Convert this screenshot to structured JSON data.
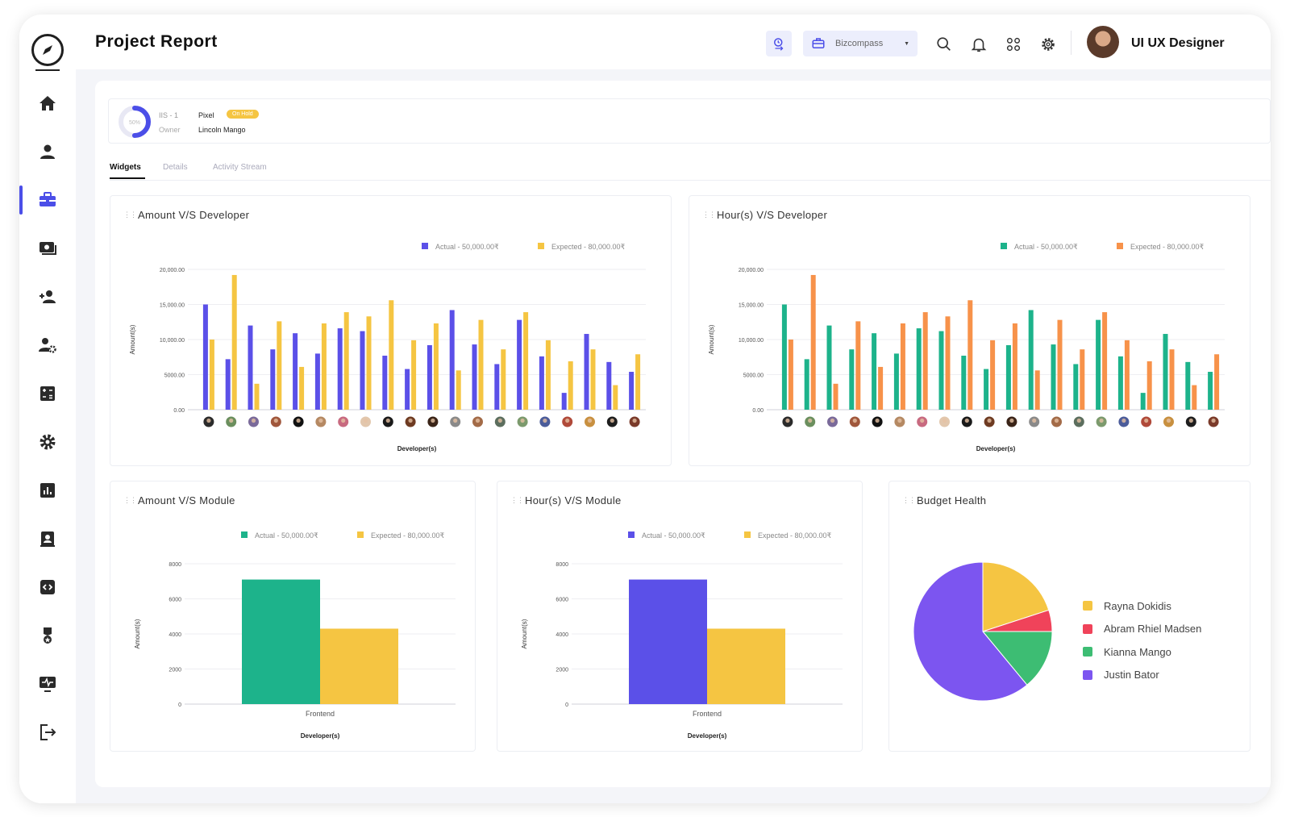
{
  "header": {
    "title": "Project Report",
    "workspace": "Bizcompass",
    "user_name": "UI UX Designer"
  },
  "project": {
    "progress_pct": 50,
    "progress_label": "50%",
    "code": "IIS - 1",
    "name": "Pixel",
    "status": "On Hold",
    "owner_label": "Owner",
    "owner": "Lincoln Mango",
    "status_color": "#f5c542"
  },
  "tabs": [
    {
      "label": "Widgets",
      "active": true
    },
    {
      "label": "Details",
      "active": false
    },
    {
      "label": "Activity Stream",
      "active": false
    }
  ],
  "sidebar_icons": [
    "home-icon",
    "user-icon",
    "briefcase-icon",
    "money-icon",
    "add-user-icon",
    "user-settings-icon",
    "calculator-icon",
    "settings-icon",
    "bar-chart-icon",
    "contacts-icon",
    "code-icon",
    "award-icon",
    "monitor-icon",
    "logout-icon"
  ],
  "chart_data": [
    {
      "type": "bar",
      "title": "Amount V/S Developer",
      "xlabel": "Developer(s)",
      "ylabel": "Amount(s)",
      "ylim": [
        0,
        20000
      ],
      "yticks": [
        "20,000.00",
        "15,000.00",
        "10,000.00",
        "5000.00",
        "0.00"
      ],
      "categories_count": 20,
      "series": [
        {
          "name": "Actual - 50,000.00₹",
          "color": "#5b50e8",
          "values": [
            15000,
            7200,
            12000,
            8600,
            10900,
            8000,
            11600,
            11200,
            7700,
            5800,
            9200,
            14200,
            9300,
            6500,
            12800,
            7600,
            2400,
            10800,
            6800,
            5400
          ]
        },
        {
          "name": "Expected - 80,000.00₹",
          "color": "#f5c542",
          "values": [
            10000,
            19200,
            3700,
            12600,
            6100,
            12300,
            13900,
            13300,
            15600,
            9900,
            12300,
            5600,
            12800,
            8600,
            13900,
            9900,
            6900,
            8600,
            3500,
            7900
          ]
        }
      ],
      "legend": "top-right"
    },
    {
      "type": "bar",
      "title": "Hour(s) V/S Developer",
      "xlabel": "Developer(s)",
      "ylabel": "Amount(s)",
      "ylim": [
        0,
        20000
      ],
      "yticks": [
        "20,000.00",
        "15,000.00",
        "10,000.00",
        "5000.00",
        "0.00"
      ],
      "categories_count": 20,
      "series": [
        {
          "name": "Actual - 50,000.00₹",
          "color": "#1db38b",
          "values": [
            15000,
            7200,
            12000,
            8600,
            10900,
            8000,
            11600,
            11200,
            7700,
            5800,
            9200,
            14200,
            9300,
            6500,
            12800,
            7600,
            2400,
            10800,
            6800,
            5400
          ]
        },
        {
          "name": "Expected - 80,000.00₹",
          "color": "#f7924a",
          "values": [
            10000,
            19200,
            3700,
            12600,
            6100,
            12300,
            13900,
            13300,
            15600,
            9900,
            12300,
            5600,
            12800,
            8600,
            13900,
            9900,
            6900,
            8600,
            3500,
            7900
          ]
        }
      ],
      "legend": "top-right"
    },
    {
      "type": "bar",
      "title": "Amount V/S Module",
      "xlabel": "Developer(s)",
      "ylabel": "Amount(s)",
      "ylim": [
        0,
        8000
      ],
      "yticks": [
        "8000",
        "6000",
        "4000",
        "2000",
        "0"
      ],
      "categories": [
        "Frontend"
      ],
      "series": [
        {
          "name": "Actual - 50,000.00₹",
          "color": "#1db38b",
          "values": [
            7100
          ]
        },
        {
          "name": "Expected - 80,000.00₹",
          "color": "#f5c542",
          "values": [
            4300
          ]
        }
      ],
      "legend": "top-right"
    },
    {
      "type": "bar",
      "title": "Hour(s) V/S Module",
      "xlabel": "Developer(s)",
      "ylabel": "Amount(s)",
      "ylim": [
        0,
        8000
      ],
      "yticks": [
        "8000",
        "6000",
        "4000",
        "2000",
        "0"
      ],
      "categories": [
        "Frontend"
      ],
      "series": [
        {
          "name": "Actual - 50,000.00₹",
          "color": "#5b50e8",
          "values": [
            7100
          ]
        },
        {
          "name": "Expected - 80,000.00₹",
          "color": "#f5c542",
          "values": [
            4300
          ]
        }
      ],
      "legend": "top-right"
    },
    {
      "type": "pie",
      "title": "Budget Health",
      "slices": [
        {
          "label": "Rayna Dokidis",
          "value": 20,
          "color": "#f5c542"
        },
        {
          "label": "Abram Rhiel Madsen",
          "value": 5,
          "color": "#f0435a"
        },
        {
          "label": "Kianna Mango",
          "value": 14,
          "color": "#3dbd73"
        },
        {
          "label": "Justin Bator",
          "value": 61,
          "color": "#7c55f0"
        }
      ],
      "legend": "right"
    }
  ],
  "avatar_colors": [
    "#2b2b2b",
    "#6b8f5e",
    "#7a6a9a",
    "#a0573c",
    "#111111",
    "#b58963",
    "#c86a80",
    "#e2c7ad",
    "#1a1a1a",
    "#6e3b22",
    "#3a2418",
    "#8a8a8a",
    "#a36b48",
    "#5c6e5e",
    "#7c9a6d",
    "#4b5c9a",
    "#b04a3a",
    "#c89040",
    "#1e1e1e",
    "#7a3a2a"
  ]
}
